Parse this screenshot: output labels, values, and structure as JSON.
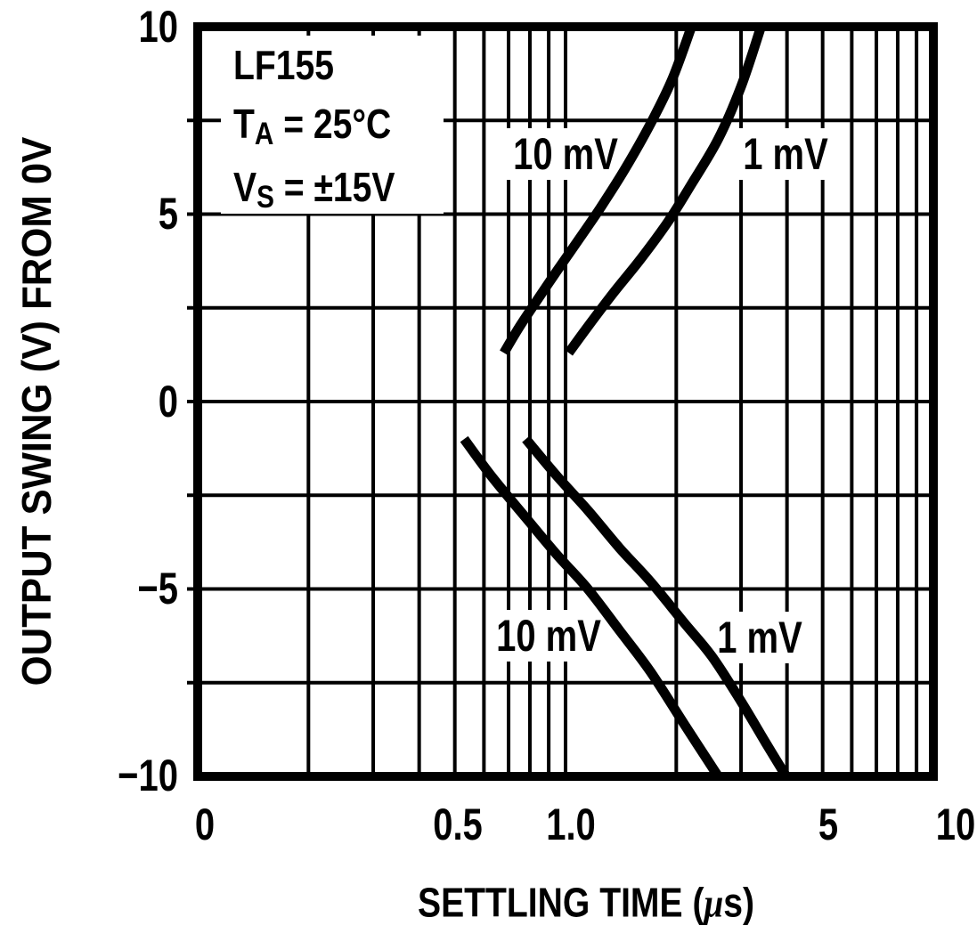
{
  "page": {
    "background": "#ffffff",
    "ink": "#000000"
  },
  "annotation": {
    "device": "LF155",
    "ta_sym": "T",
    "ta_sub": "A",
    "ta_val": " = 25°C",
    "vs_sym": "V",
    "vs_sub": "S",
    "vs_val": " = ±15V"
  },
  "axes": {
    "x_title_pre": "SETTLING TIME (",
    "x_title_mu": "μ",
    "x_title_post": "s)",
    "y_title": "OUTPUT SWING (V) FROM 0V",
    "x_tick_labels": [
      "0",
      "0.5",
      "1.0",
      "5",
      "10"
    ],
    "y_tick_labels": [
      "10",
      "5",
      "0",
      "−5",
      "−10"
    ]
  },
  "chart_data": {
    "type": "line",
    "title": "",
    "xlabel": "SETTLING TIME (μs)",
    "ylabel": "OUTPUT SWING (V) FROM 0V",
    "x_scale": "log",
    "xlim": [
      0.1,
      10
    ],
    "ylim": [
      -10,
      10
    ],
    "grid": true,
    "legend_position": "inline-labels",
    "x_ticks": [
      {
        "value": 0.1,
        "label": "0"
      },
      {
        "value": 0.5,
        "label": "0.5"
      },
      {
        "value": 1.0,
        "label": "1.0"
      },
      {
        "value": 5,
        "label": "5"
      },
      {
        "value": 10,
        "label": "10"
      }
    ],
    "y_ticks": [
      10,
      5,
      0,
      -5,
      -10
    ],
    "x_gridlines": [
      0.2,
      0.3,
      0.4,
      0.5,
      0.6,
      0.7,
      0.8,
      0.9,
      1,
      2,
      3,
      4,
      5,
      6,
      7,
      8,
      9
    ],
    "y_gridlines": [
      -7.5,
      -5,
      -2.5,
      0,
      2.5,
      5,
      7.5
    ],
    "annotation_lines": [
      "LF155",
      "TA = 25°C",
      "VS = ±15V"
    ],
    "series": [
      {
        "name": "positive-swing-settle-10mV",
        "label": "10 mV",
        "points": [
          [
            0.68,
            1.3
          ],
          [
            0.75,
            2.0
          ],
          [
            0.85,
            2.8
          ],
          [
            0.95,
            3.5
          ],
          [
            1.1,
            4.4
          ],
          [
            1.25,
            5.2
          ],
          [
            1.45,
            6.2
          ],
          [
            1.7,
            7.4
          ],
          [
            1.95,
            8.6
          ],
          [
            2.2,
            10.0
          ]
        ]
      },
      {
        "name": "positive-swing-settle-1mV",
        "label": "1 mV",
        "points": [
          [
            1.02,
            1.3
          ],
          [
            1.15,
            2.0
          ],
          [
            1.35,
            2.9
          ],
          [
            1.6,
            3.8
          ],
          [
            1.9,
            4.8
          ],
          [
            2.2,
            5.8
          ],
          [
            2.6,
            7.0
          ],
          [
            3.0,
            8.4
          ],
          [
            3.4,
            10.0
          ]
        ]
      },
      {
        "name": "negative-swing-settle-10mV",
        "label": "10 mV",
        "points": [
          [
            0.53,
            -1.0
          ],
          [
            0.63,
            -2.0
          ],
          [
            0.78,
            -3.1
          ],
          [
            0.95,
            -4.1
          ],
          [
            1.15,
            -5.0
          ],
          [
            1.4,
            -6.1
          ],
          [
            1.7,
            -7.2
          ],
          [
            2.1,
            -8.6
          ],
          [
            2.6,
            -10.0
          ]
        ]
      },
      {
        "name": "negative-swing-settle-1mV",
        "label": "1 mV",
        "points": [
          [
            0.78,
            -1.0
          ],
          [
            0.95,
            -2.0
          ],
          [
            1.15,
            -2.9
          ],
          [
            1.4,
            -3.9
          ],
          [
            1.7,
            -4.8
          ],
          [
            2.1,
            -5.9
          ],
          [
            2.5,
            -6.8
          ],
          [
            3.0,
            -8.0
          ],
          [
            3.5,
            -9.1
          ],
          [
            3.98,
            -10.0
          ]
        ]
      }
    ]
  }
}
